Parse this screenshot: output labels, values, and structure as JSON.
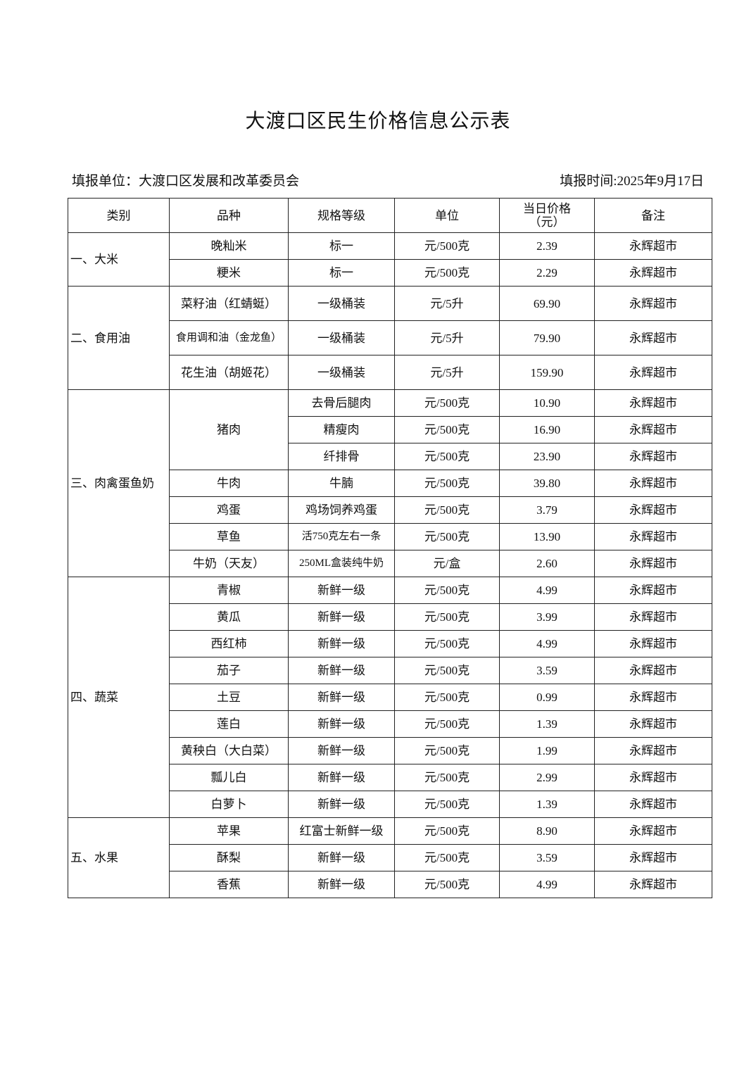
{
  "title": "大渡口区民生价格信息公示表",
  "filler": "填报单位：大渡口区发展和改革委员会",
  "date": "填报时间:2025年9月17日",
  "headers": [
    "类别",
    "品种",
    "规格等级",
    "单位",
    "当日价格\n（元）",
    "备注"
  ],
  "categories": [
    {
      "name": "一、大米",
      "varieties": [
        {
          "name": "晚籼米",
          "rows": [
            {
              "spec": "标一",
              "unit": "元/500克",
              "price": "2.39",
              "note": "永辉超市"
            }
          ]
        },
        {
          "name": "粳米",
          "rows": [
            {
              "spec": "标一",
              "unit": "元/500克",
              "price": "2.29",
              "note": "永辉超市"
            }
          ]
        }
      ]
    },
    {
      "name": "二、食用油",
      "tall": true,
      "varieties": [
        {
          "name": "菜籽油（红蜻蜓）",
          "rows": [
            {
              "spec": "一级桶装",
              "unit": "元/5升",
              "price": "69.90",
              "note": "永辉超市"
            }
          ]
        },
        {
          "name": "食用调和油（金龙鱼）",
          "rows": [
            {
              "spec": "一级桶装",
              "unit": "元/5升",
              "price": "79.90",
              "note": "永辉超市"
            }
          ]
        },
        {
          "name": "花生油（胡姬花）",
          "rows": [
            {
              "spec": "一级桶装",
              "unit": "元/5升",
              "price": "159.90",
              "note": "永辉超市"
            }
          ]
        }
      ]
    },
    {
      "name": "三、肉禽蛋鱼奶",
      "varieties": [
        {
          "name": "猪肉",
          "rows": [
            {
              "spec": "去骨后腿肉",
              "unit": "元/500克",
              "price": "10.90",
              "note": "永辉超市"
            },
            {
              "spec": "精瘦肉",
              "unit": "元/500克",
              "price": "16.90",
              "note": "永辉超市"
            },
            {
              "spec": "纤排骨",
              "unit": "元/500克",
              "price": "23.90",
              "note": "永辉超市"
            }
          ]
        },
        {
          "name": "牛肉",
          "rows": [
            {
              "spec": "牛腩",
              "unit": "元/500克",
              "price": "39.80",
              "note": "永辉超市"
            }
          ]
        },
        {
          "name": "鸡蛋",
          "rows": [
            {
              "spec": "鸡场饲养鸡蛋",
              "unit": "元/500克",
              "price": "3.79",
              "note": "永辉超市"
            }
          ]
        },
        {
          "name": "草鱼",
          "rows": [
            {
              "spec": "活750克左右一条",
              "unit": "元/500克",
              "price": "13.90",
              "note": "永辉超市"
            }
          ]
        },
        {
          "name": "牛奶（天友）",
          "rows": [
            {
              "spec": "250ML盒装纯牛奶",
              "unit": "元/盒",
              "price": "2.60",
              "note": "永辉超市"
            }
          ]
        }
      ]
    },
    {
      "name": "四、蔬菜",
      "varieties": [
        {
          "name": "青椒",
          "rows": [
            {
              "spec": "新鲜一级",
              "unit": "元/500克",
              "price": "4.99",
              "note": "永辉超市"
            }
          ]
        },
        {
          "name": "黄瓜",
          "rows": [
            {
              "spec": "新鲜一级",
              "unit": "元/500克",
              "price": "3.99",
              "note": "永辉超市"
            }
          ]
        },
        {
          "name": "西红柿",
          "rows": [
            {
              "spec": "新鲜一级",
              "unit": "元/500克",
              "price": "4.99",
              "note": "永辉超市"
            }
          ]
        },
        {
          "name": "茄子",
          "rows": [
            {
              "spec": "新鲜一级",
              "unit": "元/500克",
              "price": "3.59",
              "note": "永辉超市"
            }
          ]
        },
        {
          "name": "土豆",
          "rows": [
            {
              "spec": "新鲜一级",
              "unit": "元/500克",
              "price": "0.99",
              "note": "永辉超市"
            }
          ]
        },
        {
          "name": "莲白",
          "rows": [
            {
              "spec": "新鲜一级",
              "unit": "元/500克",
              "price": "1.39",
              "note": "永辉超市"
            }
          ]
        },
        {
          "name": "黄秧白（大白菜）",
          "rows": [
            {
              "spec": "新鲜一级",
              "unit": "元/500克",
              "price": "1.99",
              "note": "永辉超市"
            }
          ]
        },
        {
          "name": "瓢儿白",
          "rows": [
            {
              "spec": "新鲜一级",
              "unit": "元/500克",
              "price": "2.99",
              "note": "永辉超市"
            }
          ]
        },
        {
          "name": "白萝卜",
          "rows": [
            {
              "spec": "新鲜一级",
              "unit": "元/500克",
              "price": "1.39",
              "note": "永辉超市"
            }
          ]
        }
      ]
    },
    {
      "name": "五、水果",
      "varieties": [
        {
          "name": "苹果",
          "rows": [
            {
              "spec": "红富士新鲜一级",
              "unit": "元/500克",
              "price": "8.90",
              "note": "永辉超市"
            }
          ]
        },
        {
          "name": "酥梨",
          "rows": [
            {
              "spec": "新鲜一级",
              "unit": "元/500克",
              "price": "3.59",
              "note": "永辉超市"
            }
          ]
        },
        {
          "name": "香蕉",
          "rows": [
            {
              "spec": "新鲜一级",
              "unit": "元/500克",
              "price": "4.99",
              "note": "永辉超市"
            }
          ]
        }
      ]
    }
  ]
}
